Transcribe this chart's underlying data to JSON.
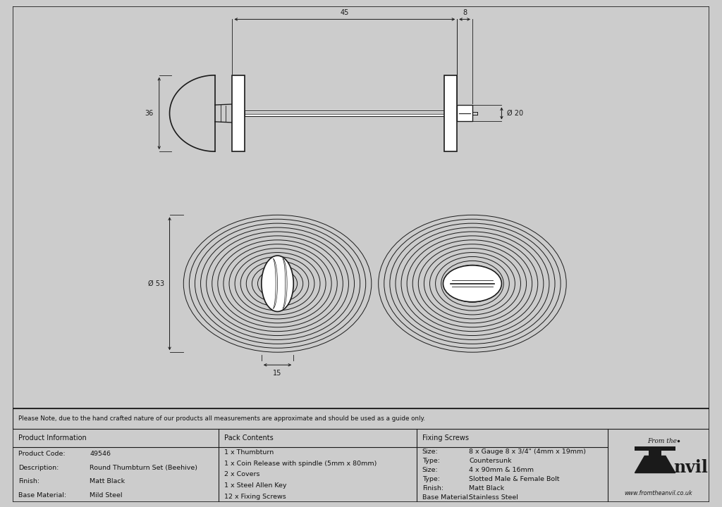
{
  "bg_color": "#cccccc",
  "drawing_bg": "#ffffff",
  "line_color": "#1a1a1a",
  "dim_color": "#1a1a1a",
  "border_color": "#1a1a1a",
  "note_text": "Please Note, due to the hand crafted nature of our products all measurements are approximate and should be used as a guide only.",
  "table_data": {
    "product_info_header": "Product Information",
    "pack_contents_header": "Pack Contents",
    "fixing_screws_header": "Fixing Screws",
    "product_info": [
      [
        "Product Code:",
        "49546"
      ],
      [
        "Description:",
        "Round Thumbturn Set (Beehive)"
      ],
      [
        "Finish:",
        "Matt Black"
      ],
      [
        "Base Material:",
        "Mild Steel"
      ]
    ],
    "pack_contents": [
      "1 x Thumbturn",
      "1 x Coin Release with spindle (5mm x 80mm)",
      "2 x Covers",
      "1 x Steel Allen Key",
      "12 x Fixing Screws"
    ],
    "fixing_screws": [
      [
        "Size:",
        "8 x Gauge 8 x 3/4\" (4mm x 19mm)"
      ],
      [
        "Type:",
        "Countersunk"
      ],
      [
        "Size:",
        "4 x 90mm & 16mm"
      ],
      [
        "Type:",
        "Slotted Male & Female Bolt"
      ],
      [
        "Finish:",
        "Matt Black"
      ],
      [
        "Base Material:",
        "Stainless Steel"
      ]
    ]
  },
  "dim_45": "45",
  "dim_8": "8",
  "dim_36": "36",
  "dim_20": "Ø 20",
  "dim_53": "Ø 53",
  "dim_15": "15"
}
